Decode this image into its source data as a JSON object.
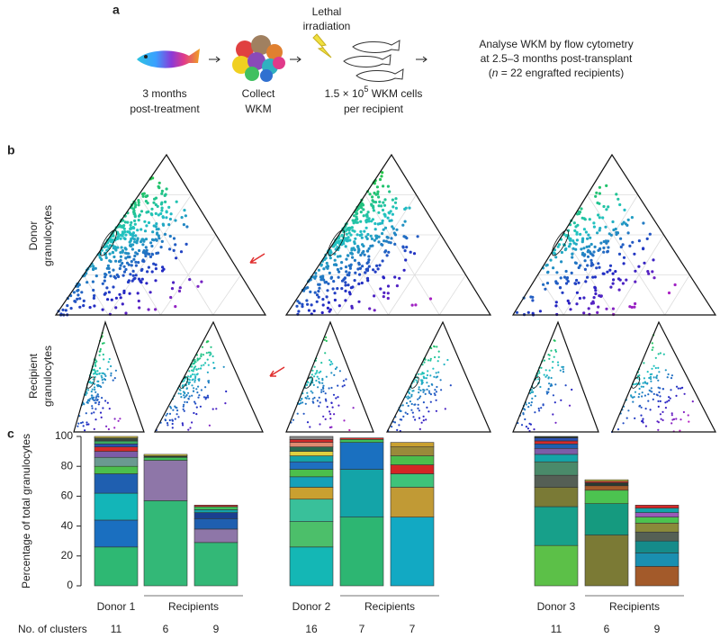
{
  "panel_a": {
    "label": "a",
    "step1": [
      "3 months",
      "post-treatment"
    ],
    "step2": [
      "Collect",
      "WKM"
    ],
    "irradiation": [
      "Lethal",
      "irradiation"
    ],
    "step3": {
      "line1": [
        "1.5 × 10",
        "5",
        " WKM cells"
      ],
      "line2": "per recipient"
    },
    "step4": {
      "line1": "Analyse WKM by flow cytometry",
      "line2": "at 2.5–3 months post-transplant",
      "line3": [
        "(",
        "n",
        " = 22 engrafted recipients)"
      ]
    }
  },
  "panel_b": {
    "label": "b",
    "donor_label": [
      "Donor",
      "granulocytes"
    ],
    "recipient_label": [
      "Recipient",
      "granulocytes"
    ]
  },
  "chart_data": {
    "type": "stacked_bar",
    "panel_label": "c",
    "ylabel": "Percentage of total granulocytes",
    "ylim": [
      0,
      100
    ],
    "yticks": [
      0,
      20,
      40,
      60,
      80,
      100
    ],
    "categories": [
      "Donor 1",
      null,
      null,
      "Donor 2",
      null,
      null,
      "Donor 3",
      null,
      null
    ],
    "group_labels": [
      "Recipients",
      "Recipients",
      "Recipients"
    ],
    "cluster_label": "No. of clusters",
    "cluster_counts": [
      11,
      6,
      9,
      16,
      7,
      7,
      11,
      6,
      9
    ],
    "bars": [
      [
        {
          "value": 26,
          "color": "#2eb873"
        },
        {
          "value": 18,
          "color": "#1a6fc0"
        },
        {
          "value": 18,
          "color": "#13b5b8"
        },
        {
          "value": 13,
          "color": "#1f5fb0"
        },
        {
          "value": 5,
          "color": "#4cbf4c"
        },
        {
          "value": 6,
          "color": "#6a9a90"
        },
        {
          "value": 4,
          "color": "#7c5ca8"
        },
        {
          "value": 3,
          "color": "#d42a2a"
        },
        {
          "value": 2,
          "color": "#2a4fb0"
        },
        {
          "value": 2,
          "color": "#3aa860"
        },
        {
          "value": 2,
          "color": "#3a4a40"
        },
        {
          "value": 1,
          "color": "#e0d040"
        }
      ],
      [
        {
          "value": 57,
          "color": "#33b877"
        },
        {
          "value": 27,
          "color": "#8e76a8"
        },
        {
          "value": 2,
          "color": "#3fbf5a"
        },
        {
          "value": 1,
          "color": "#2a3a30"
        },
        {
          "value": 1,
          "color": "#e0d040"
        }
      ],
      [
        {
          "value": 29,
          "color": "#33b877"
        },
        {
          "value": 9,
          "color": "#8e76a8"
        },
        {
          "value": 7,
          "color": "#1f5fb0"
        },
        {
          "value": 4,
          "color": "#1a3f90"
        },
        {
          "value": 2,
          "color": "#14a4a8"
        },
        {
          "value": 2,
          "color": "#3fbf5a"
        },
        {
          "value": 1,
          "color": "#d42a2a"
        }
      ],
      [
        {
          "value": 26,
          "color": "#14b7b5"
        },
        {
          "value": 17,
          "color": "#4cbf6a"
        },
        {
          "value": 15,
          "color": "#39c09a"
        },
        {
          "value": 8,
          "color": "#c9a030"
        },
        {
          "value": 7,
          "color": "#16a0b8"
        },
        {
          "value": 5,
          "color": "#4cbf4c"
        },
        {
          "value": 5,
          "color": "#1f6fc0"
        },
        {
          "value": 4,
          "color": "#14a4a8"
        },
        {
          "value": 3,
          "color": "#e0d040"
        },
        {
          "value": 3,
          "color": "#2a6a50"
        },
        {
          "value": 3,
          "color": "#e08a70"
        },
        {
          "value": 2,
          "color": "#d42a2a"
        },
        {
          "value": 2,
          "color": "#888888"
        }
      ],
      [
        {
          "value": 46,
          "color": "#2db672"
        },
        {
          "value": 32,
          "color": "#14a4a8"
        },
        {
          "value": 18,
          "color": "#1a70c0"
        },
        {
          "value": 2,
          "color": "#3fbf5a"
        },
        {
          "value": 1,
          "color": "#d42a2a"
        }
      ],
      [
        {
          "value": 46,
          "color": "#12a9c3"
        },
        {
          "value": 20,
          "color": "#c19a35"
        },
        {
          "value": 9,
          "color": "#3ec37a"
        },
        {
          "value": 6,
          "color": "#d42525"
        },
        {
          "value": 6,
          "color": "#4cbd4c"
        },
        {
          "value": 6,
          "color": "#9a8a3a"
        },
        {
          "value": 3,
          "color": "#c9a030"
        }
      ],
      [
        {
          "value": 27,
          "color": "#5cc048"
        },
        {
          "value": 26,
          "color": "#17a08a"
        },
        {
          "value": 13,
          "color": "#7a7a36"
        },
        {
          "value": 8,
          "color": "#555f55"
        },
        {
          "value": 9,
          "color": "#4a8a6a"
        },
        {
          "value": 5,
          "color": "#14a4a8"
        },
        {
          "value": 4,
          "color": "#7c5ca8"
        },
        {
          "value": 3,
          "color": "#1f5fb0"
        },
        {
          "value": 2,
          "color": "#d42a2a"
        },
        {
          "value": 2,
          "color": "#2a4fb0"
        },
        {
          "value": 1,
          "color": "#2a3a30"
        }
      ],
      [
        {
          "value": 34,
          "color": "#7b7a35"
        },
        {
          "value": 21,
          "color": "#159a7f"
        },
        {
          "value": 9,
          "color": "#4cc350"
        },
        {
          "value": 3,
          "color": "#a35a2a"
        },
        {
          "value": 2,
          "color": "#2a3a30"
        },
        {
          "value": 1,
          "color": "#d42a2a"
        },
        {
          "value": 1,
          "color": "#e0d040"
        }
      ],
      [
        {
          "value": 13,
          "color": "#a35a2a"
        },
        {
          "value": 9,
          "color": "#1a8fb0"
        },
        {
          "value": 8,
          "color": "#158b8a"
        },
        {
          "value": 6,
          "color": "#556055"
        },
        {
          "value": 6,
          "color": "#8a8a3a"
        },
        {
          "value": 4,
          "color": "#4cc350"
        },
        {
          "value": 3,
          "color": "#9a5ab8"
        },
        {
          "value": 3,
          "color": "#14a4a8"
        },
        {
          "value": 2,
          "color": "#d42a2a"
        }
      ]
    ]
  }
}
